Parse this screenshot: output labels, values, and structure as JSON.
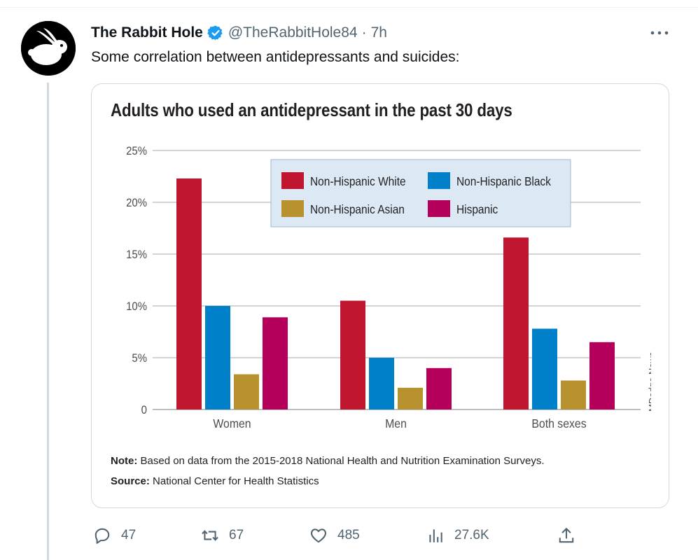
{
  "tweet": {
    "author_name": "The Rabbit Hole",
    "handle": "@TheRabbitHole84",
    "separator": "·",
    "time": "7h",
    "text": "Some correlation between antidepressants and suicides:"
  },
  "icons": {
    "avatar": "rabbit-logo",
    "verified": "verified-badge-icon",
    "more": "more-icon",
    "reply": "reply-icon",
    "repost": "repost-icon",
    "like": "like-icon",
    "views": "views-icon",
    "share": "share-icon"
  },
  "colors": {
    "verified": "#1d9bf0",
    "muted": "#536471",
    "white": "#c0152f",
    "black": "#0080c8",
    "asian": "#b8912f",
    "hispanic": "#b5005b",
    "legend_bg": "#dce9f5"
  },
  "actions": {
    "replies": "47",
    "reposts": "67",
    "likes": "485",
    "views": "27.6K"
  },
  "chart_data": {
    "type": "bar",
    "title": "Adults who used an antidepressant in the past 30 days",
    "categories": [
      "Women",
      "Men",
      "Both sexes"
    ],
    "series": [
      {
        "name": "Non-Hispanic White",
        "values": [
          22.3,
          10.5,
          16.6
        ]
      },
      {
        "name": "Non-Hispanic Black",
        "values": [
          10.0,
          5.0,
          7.8
        ]
      },
      {
        "name": "Non-Hispanic Asian",
        "values": [
          3.4,
          2.1,
          2.8
        ]
      },
      {
        "name": "Hispanic",
        "values": [
          8.9,
          4.0,
          6.5
        ]
      }
    ],
    "ylim": [
      0,
      25
    ],
    "yticks": [
      "0",
      "5%",
      "10%",
      "15%",
      "20%",
      "25%"
    ],
    "grid": true,
    "legend_position": "top-center",
    "watermark": "MDedge News",
    "note_label": "Note:",
    "note_text": "Based on data from the 2015-2018 National Health and Nutrition Examination Surveys.",
    "source_label": "Source:",
    "source_text": "National Center for Health Statistics"
  }
}
